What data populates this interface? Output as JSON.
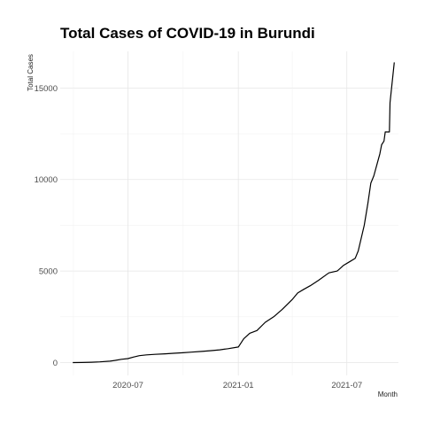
{
  "chart_data": {
    "type": "line",
    "title": "Total Cases of COVID-19 in Burundi",
    "xlabel": "Month",
    "ylabel": "Total Cases",
    "x_ticks": [
      "2020-07",
      "2021-01",
      "2021-07"
    ],
    "y_ticks": [
      0,
      5000,
      10000,
      15000
    ],
    "xlim": [
      "2020-03-10",
      "2021-09-25"
    ],
    "ylim": [
      -700,
      17000
    ],
    "grid": true,
    "legend": "none",
    "line_color": "#000000",
    "series": [
      {
        "x": [
          "2020-03-31",
          "2020-04-15",
          "2020-05-01",
          "2020-05-15",
          "2020-06-01",
          "2020-06-10",
          "2020-06-20",
          "2020-07-01",
          "2020-07-10",
          "2020-07-20",
          "2020-08-01",
          "2020-08-15",
          "2020-09-01",
          "2020-09-15",
          "2020-10-01",
          "2020-10-15",
          "2020-11-01",
          "2020-11-15",
          "2020-12-01",
          "2020-12-15",
          "2021-01-01",
          "2021-01-10",
          "2021-01-20",
          "2021-02-01",
          "2021-02-15",
          "2021-03-01",
          "2021-03-15",
          "2021-04-01",
          "2021-04-10",
          "2021-04-20",
          "2021-05-01",
          "2021-05-15",
          "2021-06-01",
          "2021-06-15",
          "2021-06-25",
          "2021-07-05",
          "2021-07-15",
          "2021-07-20",
          "2021-07-25",
          "2021-07-30",
          "2021-08-05",
          "2021-08-10",
          "2021-08-15",
          "2021-08-20",
          "2021-08-25",
          "2021-08-28",
          "2021-09-01",
          "2021-09-03",
          "2021-09-10",
          "2021-09-11",
          "2021-09-18"
        ],
        "y": [
          2,
          5,
          20,
          40,
          80,
          120,
          180,
          220,
          300,
          380,
          420,
          450,
          480,
          510,
          540,
          570,
          610,
          650,
          700,
          760,
          850,
          1300,
          1600,
          1750,
          2200,
          2500,
          2900,
          3450,
          3800,
          4000,
          4200,
          4500,
          4900,
          5000,
          5300,
          5500,
          5700,
          6100,
          6800,
          7500,
          8700,
          9800,
          10200,
          10800,
          11400,
          11900,
          12100,
          12600,
          12600,
          14200,
          16400
        ]
      }
    ]
  }
}
